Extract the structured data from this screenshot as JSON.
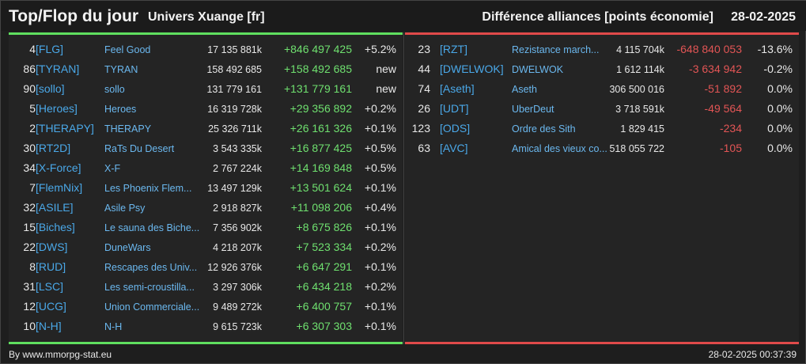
{
  "header": {
    "title": "Top/Flop du jour",
    "universe": "Univers Xuange [fr]",
    "subtitle": "Différence alliances [points économie]",
    "date": "28-02-2025"
  },
  "colors": {
    "gain": "#6fe06f",
    "loss": "#e25555",
    "tag": "#4aa8e8",
    "top_border": "#5fdf5f",
    "flop_border": "#e04a4a"
  },
  "top": [
    {
      "rank": "4",
      "tag": "[FLG]",
      "name": "Feel Good",
      "points": "17 135 881k",
      "delta": "+846 497 425",
      "pct": "+5.2%"
    },
    {
      "rank": "86",
      "tag": "[TYRAN]",
      "name": "TYRAN",
      "points": "158 492 685",
      "delta": "+158 492 685",
      "pct": "new"
    },
    {
      "rank": "90",
      "tag": "[sollo]",
      "name": "sollo",
      "points": "131 779 161",
      "delta": "+131 779 161",
      "pct": "new"
    },
    {
      "rank": "5",
      "tag": "[Heroes]",
      "name": "Heroes",
      "points": "16 319 728k",
      "delta": "+29 356 892",
      "pct": "+0.2%"
    },
    {
      "rank": "2",
      "tag": "[THERAPY]",
      "name": "THERAPY",
      "points": "25 326 711k",
      "delta": "+26 161 326",
      "pct": "+0.1%"
    },
    {
      "rank": "30",
      "tag": "[RT2D]",
      "name": "RaTs Du Desert",
      "points": "3 543 335k",
      "delta": "+16 877 425",
      "pct": "+0.5%"
    },
    {
      "rank": "34",
      "tag": "[X-Force]",
      "name": "X-F",
      "points": "2 767 224k",
      "delta": "+14 169 848",
      "pct": "+0.5%"
    },
    {
      "rank": "7",
      "tag": "[FlemNix]",
      "name": "Les Phoenix Flem...",
      "points": "13 497 129k",
      "delta": "+13 501 624",
      "pct": "+0.1%"
    },
    {
      "rank": "32",
      "tag": "[ASILE]",
      "name": "Asile Psy",
      "points": "2 918 827k",
      "delta": "+11 098 206",
      "pct": "+0.4%"
    },
    {
      "rank": "15",
      "tag": "[Biches]",
      "name": "Le sauna des Biche...",
      "points": "7 356 902k",
      "delta": "+8 675 826",
      "pct": "+0.1%"
    },
    {
      "rank": "22",
      "tag": "[DWS]",
      "name": "DuneWars",
      "points": "4 218 207k",
      "delta": "+7 523 334",
      "pct": "+0.2%"
    },
    {
      "rank": "8",
      "tag": "[RUD]",
      "name": "Rescapes des Univ...",
      "points": "12 926 376k",
      "delta": "+6 647 291",
      "pct": "+0.1%"
    },
    {
      "rank": "31",
      "tag": "[LSC]",
      "name": "Les semi-croustilla...",
      "points": "3 297 306k",
      "delta": "+6 434 218",
      "pct": "+0.2%"
    },
    {
      "rank": "12",
      "tag": "[UCG]",
      "name": "Union Commerciale...",
      "points": "9 489 272k",
      "delta": "+6 400 757",
      "pct": "+0.1%"
    },
    {
      "rank": "10",
      "tag": "[N-H]",
      "name": "N-H",
      "points": "9 615 723k",
      "delta": "+6 307 303",
      "pct": "+0.1%"
    }
  ],
  "flop": [
    {
      "rank": "23",
      "tag": "[RZT]",
      "name": "Rezistance march...",
      "points": "4 115 704k",
      "delta": "-648 840 053",
      "pct": "-13.6%"
    },
    {
      "rank": "44",
      "tag": "[DWELWOK]",
      "name": "DWELWOK",
      "points": "1 612 114k",
      "delta": "-3 634 942",
      "pct": "-0.2%"
    },
    {
      "rank": "74",
      "tag": "[Aseth]",
      "name": "Aseth",
      "points": "306 500 016",
      "delta": "-51 892",
      "pct": "0.0%"
    },
    {
      "rank": "26",
      "tag": "[UDT]",
      "name": "UberDeut",
      "points": "3 718 591k",
      "delta": "-49 564",
      "pct": "0.0%"
    },
    {
      "rank": "123",
      "tag": "[ODS]",
      "name": "Ordre des Sith",
      "points": "1 829 415",
      "delta": "-234",
      "pct": "0.0%"
    },
    {
      "rank": "63",
      "tag": "[AVC]",
      "name": "Amical des vieux co...",
      "points": "518 055 722",
      "delta": "-105",
      "pct": "0.0%"
    }
  ],
  "footer": {
    "source": "By www.mmorpg-stat.eu",
    "timestamp": "28-02-2025 00:37:39"
  }
}
